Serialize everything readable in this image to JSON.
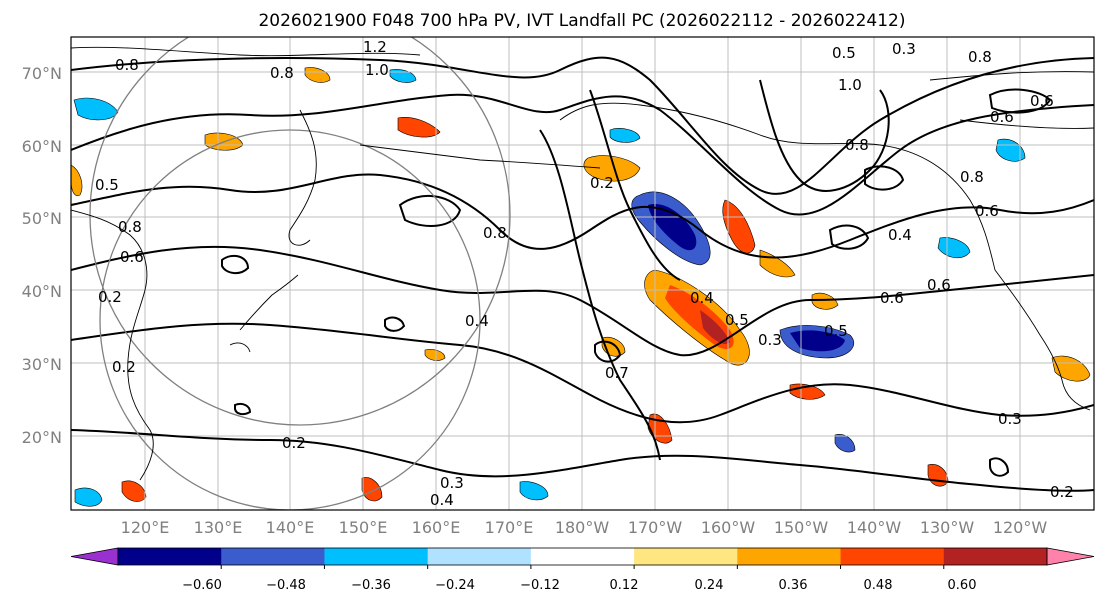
{
  "figure": {
    "title": "2026021900 F048 700 hPa PV, IVT Landfall PC (2026022112 - 2026022412)"
  },
  "map": {
    "lat_labels": [
      "70°N",
      "60°N",
      "50°N",
      "40°N",
      "30°N",
      "20°N"
    ],
    "lon_labels": [
      "120°E",
      "130°E",
      "140°E",
      "150°E",
      "160°E",
      "170°E",
      "180°W",
      "170°W",
      "160°W",
      "150°W",
      "140°W",
      "130°W",
      "120°W"
    ],
    "contour_labels": [
      "1.2",
      "0.8",
      "1.0",
      "0.8",
      "0.5",
      "0.3",
      "0.8",
      "1.0",
      "0.6",
      "0.6",
      "0.8",
      "0.5",
      "0.8",
      "0.6",
      "0.2",
      "0.8",
      "0.6",
      "0.2",
      "0.2",
      "0.4",
      "0.8",
      "0.4",
      "0.6",
      "0.6",
      "0.4",
      "0.5",
      "0.3",
      "0.5",
      "0.7",
      "0.3",
      "0.2",
      "0.3",
      "0.4",
      "0.2"
    ],
    "colors": {
      "coastline": "#000000",
      "contour": "#000000",
      "grid": "#bfbfbf",
      "range_ring": "#808080"
    }
  },
  "colorbar": {
    "ticks": [
      "−0.60",
      "−0.48",
      "−0.36",
      "−0.24",
      "−0.12",
      "0.12",
      "0.24",
      "0.36",
      "0.48",
      "0.60"
    ],
    "colors": [
      "#9b30d0",
      "#00008b",
      "#3a5ccc",
      "#00bfff",
      "#b0e2ff",
      "#ffffff",
      "#ffe680",
      "#ffa500",
      "#ff4500",
      "#b22222",
      "#ff82ab"
    ]
  }
}
